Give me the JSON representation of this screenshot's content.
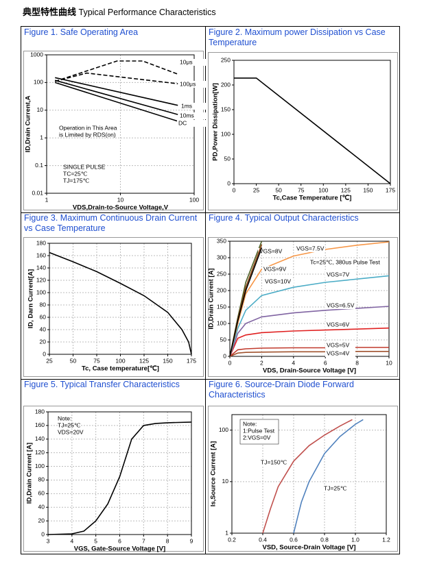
{
  "header": {
    "title_cn": "典型特性曲线",
    "title_en": "Typical Performance Characteristics"
  },
  "chart_data": [
    {
      "type": "line",
      "title": "Figure 1. Safe Operating Area",
      "xlabel": "VDS,Drain-to-Source Voltage,V",
      "ylabel": "ID,Drain Current,A",
      "xlog": true,
      "ylog": true,
      "xlim": [
        1,
        100
      ],
      "ylim": [
        0.01,
        1000
      ],
      "xticks": [
        1,
        10,
        100
      ],
      "yticks": [
        0.01,
        0.1,
        1,
        10,
        100,
        1000
      ],
      "grid": true,
      "annotations": [
        [
          "Operation in This Area",
          "is Limited by RDS(on)"
        ],
        [
          "SINGLE PULSE",
          "TC=25℃",
          "TJ=175℃"
        ]
      ],
      "series": [
        {
          "name": "10μs",
          "color": "#000000",
          "dash": true,
          "x": [
            1.3,
            9,
            20,
            60
          ],
          "values": [
            110,
            600,
            600,
            200
          ]
        },
        {
          "name": "100μs",
          "color": "#000000",
          "dash": true,
          "x": [
            1.3,
            3.5,
            60
          ],
          "values": [
            110,
            220,
            90
          ]
        },
        {
          "name": "1ms",
          "color": "#000000",
          "dash": false,
          "x": [
            1.3,
            60
          ],
          "values": [
            150,
            15
          ]
        },
        {
          "name": "10ms",
          "color": "#000000",
          "dash": false,
          "x": [
            1.3,
            60
          ],
          "values": [
            120,
            7
          ]
        },
        {
          "name": "DC",
          "color": "#000000",
          "dash": false,
          "x": [
            1.3,
            60
          ],
          "values": [
            100,
            4
          ]
        }
      ]
    },
    {
      "type": "line",
      "title": "Figure 2. Maximum power Dissipation vs Case Temperature",
      "xlabel": "Tc,Case Temperature [℃]",
      "ylabel": "PD,Power Dissipation[W]",
      "xlim": [
        0,
        175
      ],
      "ylim": [
        0,
        250
      ],
      "xticks": [
        0,
        25,
        50,
        75,
        100,
        125,
        150,
        175
      ],
      "yticks": [
        0,
        50,
        100,
        150,
        200,
        250
      ],
      "grid": false,
      "color": "#000000",
      "x": [
        0,
        25,
        175
      ],
      "values": [
        214,
        214,
        0
      ]
    },
    {
      "type": "line",
      "title": "Figure 3. Maximum Continuous Drain Current vs Case Temperature",
      "xlabel": "Tc, Case temperature[℃]",
      "ylabel": "ID, Darn Current[A]",
      "xlim": [
        25,
        175
      ],
      "ylim": [
        0,
        180
      ],
      "xticks": [
        25,
        50,
        75,
        100,
        125,
        150,
        175
      ],
      "yticks": [
        0,
        20,
        40,
        60,
        80,
        100,
        120,
        140,
        160,
        180
      ],
      "grid": true,
      "color": "#000000",
      "x": [
        25,
        50,
        75,
        100,
        125,
        150,
        165,
        172,
        175
      ],
      "values": [
        165,
        150,
        134,
        115,
        95,
        68,
        40,
        20,
        0
      ]
    },
    {
      "type": "line",
      "title": "Figure 4. Typical Output Characteristics",
      "xlabel": "VDS, Drain-Source Voltage [V]",
      "ylabel": "ID,Drain Current [A]",
      "xlim": [
        0,
        10
      ],
      "ylim": [
        0,
        350
      ],
      "xticks": [
        0,
        2,
        4,
        6,
        8,
        10
      ],
      "yticks": [
        0,
        50,
        100,
        150,
        200,
        250,
        300,
        350
      ],
      "grid": true,
      "annotations": [
        [
          "Tc=25℃, 380us Pulse Test"
        ]
      ],
      "x": [
        0,
        0.5,
        1,
        2,
        4,
        6,
        8,
        10
      ],
      "series": [
        {
          "name": "VGS=4V",
          "color": "#a0522d",
          "values": [
            0,
            10,
            12,
            13,
            14,
            14,
            15,
            15
          ]
        },
        {
          "name": "VGS=5V",
          "color": "#c0392b",
          "values": [
            0,
            20,
            23,
            25,
            26,
            26,
            27,
            27
          ]
        },
        {
          "name": "VGS=6V",
          "color": "#e02020",
          "values": [
            0,
            55,
            65,
            72,
            77,
            80,
            83,
            86
          ]
        },
        {
          "name": "VGS=6.5V",
          "color": "#8064a2",
          "values": [
            0,
            70,
            100,
            120,
            132,
            140,
            146,
            152
          ]
        },
        {
          "name": "VGS=7V",
          "color": "#4bacc6",
          "values": [
            0,
            85,
            140,
            185,
            210,
            225,
            235,
            245
          ]
        },
        {
          "name": "VGS=7.5V",
          "color": "#f79646",
          "values": [
            0,
            100,
            190,
            265,
            305,
            325,
            338,
            348
          ]
        },
        {
          "name": "VGS=8V",
          "color": "#4f6228",
          "values": [
            0,
            118,
            225,
            350,
            null,
            null,
            null,
            null
          ]
        },
        {
          "name": "VGS=9V",
          "color": "#8b4513",
          "values": [
            0,
            112,
            210,
            340,
            null,
            null,
            null,
            null
          ]
        },
        {
          "name": "VGS=10V",
          "color": "#000000",
          "values": [
            0,
            108,
            200,
            330,
            null,
            null,
            null,
            null
          ]
        }
      ]
    },
    {
      "type": "line",
      "title": "Figure 5. Typical Transfer Characteristics",
      "xlabel": "VGS, Gate-Source Voltage [V]",
      "ylabel": "ID,Drain Current [A]",
      "xlim": [
        3,
        9
      ],
      "ylim": [
        0,
        180
      ],
      "xticks": [
        3,
        4,
        5,
        6,
        7,
        8,
        9
      ],
      "yticks": [
        0,
        20,
        40,
        60,
        80,
        100,
        120,
        140,
        160,
        180
      ],
      "grid": true,
      "annotations": [
        [
          "Note:",
          "TJ=25℃",
          "VDS=20V"
        ]
      ],
      "color": "#000000",
      "x": [
        3,
        4,
        4.5,
        5,
        5.5,
        6,
        6.5,
        7,
        7.5,
        8,
        9
      ],
      "values": [
        0,
        1,
        5,
        20,
        45,
        85,
        140,
        160,
        163,
        164,
        165
      ]
    },
    {
      "type": "line",
      "title": "Figure 6. Source-Drain Diode Forward Characteristics",
      "xlabel": "VSD, Source-Drain Voltage [V]",
      "ylabel": "Is,Source Current [A]",
      "ylog": true,
      "xlim": [
        0.2,
        1.2
      ],
      "ylim": [
        1,
        200
      ],
      "xticks": [
        0.2,
        0.4,
        0.6,
        0.8,
        {
          "value": 1,
          "label": "1.0"
        },
        1.2
      ],
      "yticks": [
        1,
        10,
        100
      ],
      "grid": true,
      "annotations": [
        [
          "Note:",
          "1:Pulse Test",
          "2:VGS=0V"
        ]
      ],
      "series": [
        {
          "name": "TJ=150℃",
          "color": "#c0504d",
          "x": [
            0.4,
            0.45,
            0.5,
            0.6,
            0.7,
            0.8,
            0.9,
            0.98
          ],
          "values": [
            1,
            3,
            8,
            25,
            50,
            80,
            120,
            160
          ]
        },
        {
          "name": "TJ=25℃",
          "color": "#4f81bd",
          "x": [
            0.6,
            0.65,
            0.7,
            0.8,
            0.9,
            1,
            1.05
          ],
          "values": [
            1,
            4,
            10,
            35,
            75,
            130,
            160
          ]
        }
      ]
    }
  ]
}
